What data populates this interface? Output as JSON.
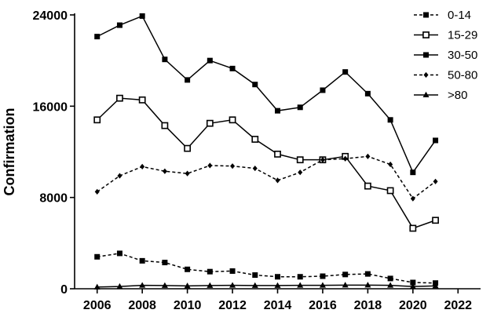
{
  "chart_data": {
    "type": "line",
    "title": "",
    "xlabel": "",
    "ylabel": "Confirmation",
    "xlim": [
      2005,
      2023
    ],
    "ylim": [
      0,
      24000
    ],
    "xticks": [
      2006,
      2008,
      2010,
      2012,
      2014,
      2016,
      2018,
      2020,
      2022
    ],
    "yticks": [
      0,
      8000,
      16000,
      24000
    ],
    "grid": false,
    "legend_position": "top-right",
    "x": [
      2006,
      2007,
      2008,
      2009,
      2010,
      2011,
      2012,
      2013,
      2014,
      2015,
      2016,
      2017,
      2018,
      2019,
      2020,
      2021
    ],
    "series": [
      {
        "name": "0-14",
        "line": "dashed",
        "marker": "square-filled",
        "values": [
          2800,
          3100,
          2450,
          2300,
          1700,
          1500,
          1550,
          1200,
          1050,
          1050,
          1100,
          1250,
          1300,
          900,
          550,
          500
        ]
      },
      {
        "name": "15-29",
        "line": "solid",
        "marker": "square-open",
        "values": [
          14800,
          16700,
          16550,
          14300,
          12300,
          14500,
          14800,
          13100,
          11800,
          11300,
          11300,
          11600,
          9000,
          8600,
          5300,
          6000
        ]
      },
      {
        "name": "30-50",
        "line": "solid",
        "marker": "square-filled",
        "values": [
          22100,
          23100,
          23900,
          20100,
          18300,
          20000,
          19300,
          17900,
          15600,
          15900,
          17400,
          19000,
          17100,
          14800,
          10200,
          13000
        ]
      },
      {
        "name": "50-80",
        "line": "dashed",
        "marker": "diamond-filled",
        "values": [
          8500,
          9900,
          10700,
          10300,
          10100,
          10800,
          10750,
          10550,
          9500,
          10200,
          11300,
          11400,
          11600,
          10900,
          7900,
          9400
        ]
      },
      {
        "name": ">80",
        "line": "solid",
        "marker": "triangle-filled",
        "values": [
          150,
          200,
          300,
          280,
          250,
          280,
          300,
          280,
          280,
          300,
          300,
          320,
          320,
          300,
          200,
          250
        ]
      }
    ]
  }
}
